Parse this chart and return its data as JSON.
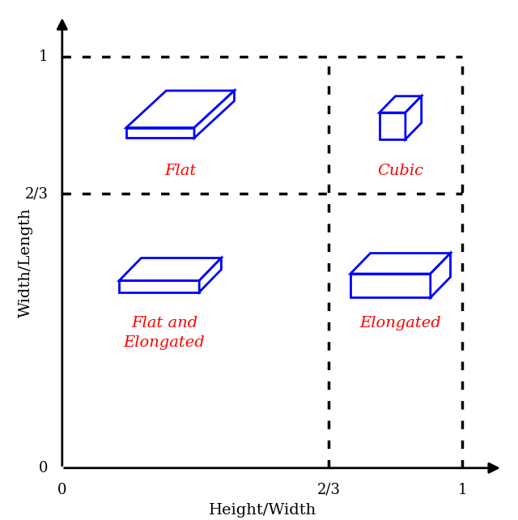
{
  "xlim": [
    0,
    1.1
  ],
  "ylim": [
    0,
    1.1
  ],
  "xlabel": "Height/Width",
  "ylabel": "Width/Length",
  "label_flat": "Flat",
  "label_cubic": "Cubic",
  "label_flat_elongated": "Flat and\nElongated",
  "label_elongated": "Elongated",
  "label_color": "#FF0000",
  "shape_color": "#0000FF",
  "bg_color": "#FFFFFF",
  "font_size_labels": 14,
  "font_size_axis": 14,
  "font_size_ticks": 13,
  "two_thirds": 0.6667,
  "one": 1.0
}
